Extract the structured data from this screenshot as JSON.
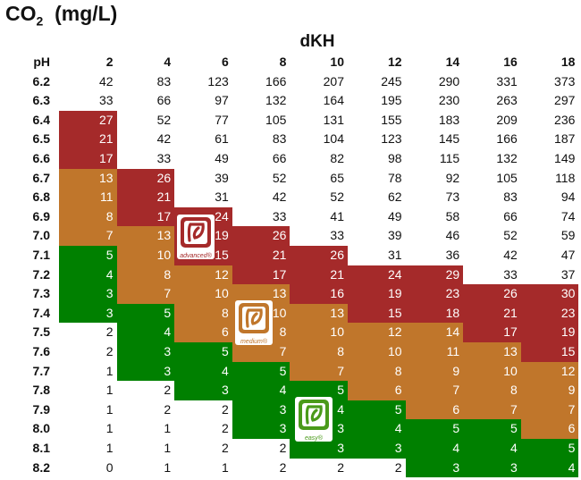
{
  "chart_data": {
    "type": "table",
    "title": "CO2 (mg/L)",
    "title_main": "CO",
    "title_sub": "2",
    "title_unit": "(mg/L)",
    "column_group_label": "dKH",
    "row_header_label": "pH",
    "columns": [
      "2",
      "4",
      "6",
      "8",
      "10",
      "12",
      "14",
      "16",
      "18"
    ],
    "rows": [
      {
        "ph": "6.2",
        "values": [
          42,
          83,
          123,
          166,
          207,
          245,
          290,
          331,
          373
        ]
      },
      {
        "ph": "6.3",
        "values": [
          33,
          66,
          97,
          132,
          164,
          195,
          230,
          263,
          297
        ]
      },
      {
        "ph": "6.4",
        "values": [
          27,
          52,
          77,
          105,
          131,
          155,
          183,
          209,
          236
        ]
      },
      {
        "ph": "6.5",
        "values": [
          21,
          42,
          61,
          83,
          104,
          123,
          145,
          166,
          187
        ]
      },
      {
        "ph": "6.6",
        "values": [
          17,
          33,
          49,
          66,
          82,
          98,
          115,
          132,
          149
        ]
      },
      {
        "ph": "6.7",
        "values": [
          13,
          26,
          39,
          52,
          65,
          78,
          92,
          105,
          118
        ]
      },
      {
        "ph": "6.8",
        "values": [
          11,
          21,
          31,
          42,
          52,
          62,
          73,
          83,
          94
        ]
      },
      {
        "ph": "6.9",
        "values": [
          8,
          17,
          24,
          33,
          41,
          49,
          58,
          66,
          74
        ]
      },
      {
        "ph": "7.0",
        "values": [
          7,
          13,
          19,
          26,
          33,
          39,
          46,
          52,
          59
        ]
      },
      {
        "ph": "7.1",
        "values": [
          5,
          10,
          15,
          21,
          26,
          31,
          36,
          42,
          47
        ]
      },
      {
        "ph": "7.2",
        "values": [
          4,
          8,
          12,
          17,
          21,
          24,
          29,
          33,
          37
        ]
      },
      {
        "ph": "7.3",
        "values": [
          3,
          7,
          10,
          13,
          16,
          19,
          23,
          26,
          30
        ]
      },
      {
        "ph": "7.4",
        "values": [
          3,
          5,
          8,
          10,
          13,
          15,
          18,
          21,
          23
        ]
      },
      {
        "ph": "7.5",
        "values": [
          2,
          4,
          6,
          8,
          10,
          12,
          14,
          17,
          19
        ]
      },
      {
        "ph": "7.6",
        "values": [
          2,
          3,
          5,
          7,
          8,
          10,
          11,
          13,
          15
        ]
      },
      {
        "ph": "7.7",
        "values": [
          1,
          3,
          4,
          5,
          7,
          8,
          9,
          10,
          12
        ]
      },
      {
        "ph": "7.8",
        "values": [
          1,
          2,
          3,
          4,
          5,
          6,
          7,
          8,
          9
        ]
      },
      {
        "ph": "7.9",
        "values": [
          1,
          2,
          2,
          3,
          4,
          5,
          6,
          7,
          7
        ]
      },
      {
        "ph": "8.0",
        "values": [
          1,
          1,
          2,
          3,
          3,
          4,
          5,
          5,
          6
        ]
      },
      {
        "ph": "8.1",
        "values": [
          1,
          1,
          2,
          2,
          3,
          3,
          4,
          4,
          5
        ]
      },
      {
        "ph": "8.2",
        "values": [
          0,
          1,
          1,
          2,
          2,
          2,
          3,
          3,
          4
        ]
      }
    ],
    "color_bands": [
      {
        "min": 15,
        "max": 30,
        "color": "#a52a2a",
        "logo": "advanced"
      },
      {
        "min": 6,
        "max": 14,
        "color": "#c0762b",
        "logo": "medium"
      },
      {
        "min": 3,
        "max": 5,
        "color": "#008000",
        "logo": "easy"
      }
    ]
  },
  "logos": [
    {
      "label": "advanced®",
      "color": "#a52a2a"
    },
    {
      "label": "medium®",
      "color": "#c0762b"
    },
    {
      "label": "easy®",
      "color": "#4a9a1a"
    }
  ]
}
